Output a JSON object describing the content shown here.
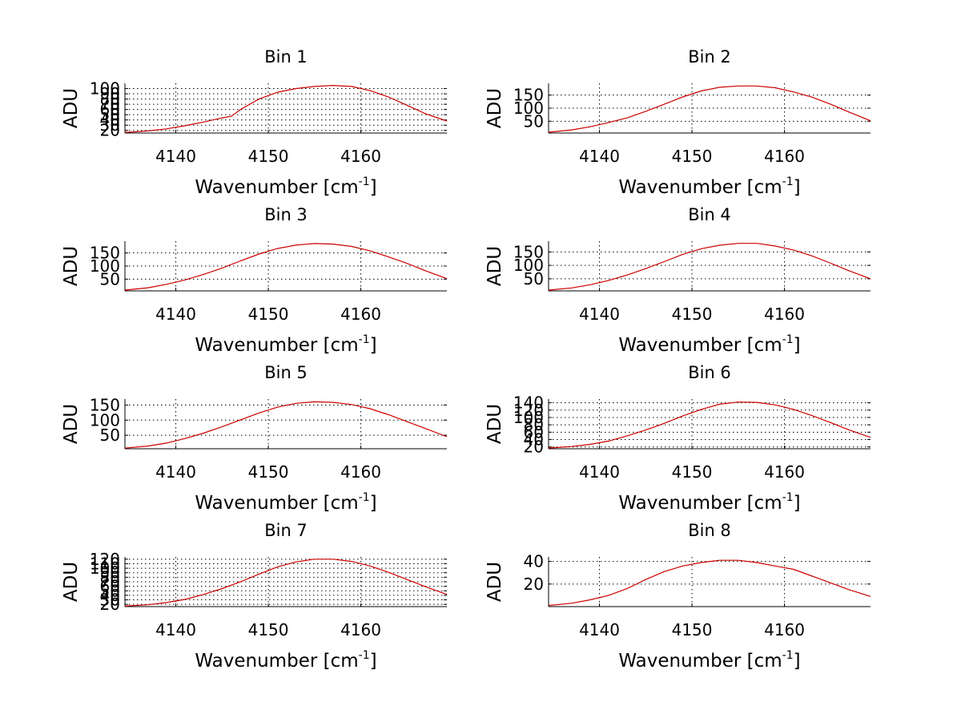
{
  "figure": {
    "background": "#ffffff",
    "line_color": "#cc0000"
  },
  "chart_data": [
    {
      "type": "line",
      "title": "Bin 1",
      "xlabel": {
        "main": "Wavenumber [cm",
        "sup": "-1",
        "close": "]"
      },
      "ylabel": "ADU",
      "xlim": [
        4134.5,
        4169.3
      ],
      "ylim": [
        15,
        110
      ],
      "xticks": [
        4140,
        4150,
        4160
      ],
      "xtick_labels": [
        "4140",
        "4150",
        "4160"
      ],
      "yticks": [
        20,
        30,
        40,
        50,
        60,
        70,
        80,
        90,
        100
      ],
      "ytick_labels": [
        "20",
        "30",
        "40",
        "50",
        "60",
        "70",
        "80",
        "90",
        "100"
      ],
      "grid": true,
      "series": [
        {
          "name": "Bin 1",
          "x": [
            4134.5,
            4137,
            4139,
            4141,
            4143,
            4145,
            4146,
            4147,
            4149,
            4151,
            4153,
            4155,
            4157,
            4159,
            4161,
            4163,
            4165,
            4167,
            4169.3
          ],
          "y": [
            16,
            19,
            23,
            29,
            36,
            44,
            47,
            60,
            80,
            93,
            100,
            104,
            106,
            104,
            96,
            84,
            68,
            52,
            38
          ]
        }
      ]
    },
    {
      "type": "line",
      "title": "Bin 2",
      "xlabel": {
        "main": "Wavenumber [cm",
        "sup": "-1",
        "close": "]"
      },
      "ylabel": "ADU",
      "xlim": [
        4134.5,
        4169.3
      ],
      "ylim": [
        5,
        195
      ],
      "xticks": [
        4140,
        4150,
        4160
      ],
      "xtick_labels": [
        "4140",
        "4150",
        "4160"
      ],
      "yticks": [
        50,
        100,
        150
      ],
      "ytick_labels": [
        "50",
        "100",
        "150"
      ],
      "grid": true,
      "series": [
        {
          "name": "Bin 2",
          "x": [
            4134.5,
            4137,
            4139,
            4141,
            4143,
            4145,
            4147,
            4149,
            4151,
            4153,
            4155,
            4157,
            4159,
            4161,
            4163,
            4165,
            4167,
            4169.3
          ],
          "y": [
            8,
            17,
            29,
            45,
            63,
            88,
            115,
            143,
            166,
            180,
            185,
            185,
            178,
            162,
            142,
            115,
            85,
            52
          ]
        }
      ]
    },
    {
      "type": "line",
      "title": "Bin 3",
      "xlabel": {
        "main": "Wavenumber [cm",
        "sup": "-1",
        "close": "]"
      },
      "ylabel": "ADU",
      "xlim": [
        4134.5,
        4169.3
      ],
      "ylim": [
        5,
        195
      ],
      "xticks": [
        4140,
        4150,
        4160
      ],
      "xtick_labels": [
        "4140",
        "4150",
        "4160"
      ],
      "yticks": [
        50,
        100,
        150
      ],
      "ytick_labels": [
        "50",
        "100",
        "150"
      ],
      "grid": true,
      "series": [
        {
          "name": "Bin 3",
          "x": [
            4134.5,
            4137,
            4139,
            4141,
            4143,
            4145,
            4147,
            4149,
            4151,
            4153,
            4155,
            4157,
            4159,
            4161,
            4163,
            4165,
            4167,
            4169.3
          ],
          "y": [
            8,
            17,
            30,
            47,
            68,
            92,
            120,
            146,
            167,
            180,
            186,
            184,
            175,
            158,
            135,
            110,
            82,
            52
          ]
        }
      ]
    },
    {
      "type": "line",
      "title": "Bin 4",
      "xlabel": {
        "main": "Wavenumber [cm",
        "sup": "-1",
        "close": "]"
      },
      "ylabel": "ADU",
      "xlim": [
        4134.5,
        4169.3
      ],
      "ylim": [
        5,
        190
      ],
      "xticks": [
        4140,
        4150,
        4160
      ],
      "xtick_labels": [
        "4140",
        "4150",
        "4160"
      ],
      "yticks": [
        50,
        100,
        150
      ],
      "ytick_labels": [
        "50",
        "100",
        "150"
      ],
      "grid": true,
      "series": [
        {
          "name": "Bin 4",
          "x": [
            4134.5,
            4137,
            4139,
            4141,
            4143,
            4145,
            4147,
            4149,
            4151,
            4153,
            4155,
            4157,
            4159,
            4161,
            4163,
            4165,
            4167,
            4169.3
          ],
          "y": [
            8,
            16,
            28,
            44,
            64,
            88,
            114,
            141,
            162,
            175,
            182,
            182,
            172,
            157,
            135,
            108,
            80,
            50
          ]
        }
      ]
    },
    {
      "type": "line",
      "title": "Bin 5",
      "xlabel": {
        "main": "Wavenumber [cm",
        "sup": "-1",
        "close": "]"
      },
      "ylabel": "ADU",
      "xlim": [
        4134.5,
        4169.3
      ],
      "ylim": [
        5,
        170
      ],
      "xticks": [
        4140,
        4150,
        4160
      ],
      "xtick_labels": [
        "4140",
        "4150",
        "4160"
      ],
      "yticks": [
        50,
        100,
        150
      ],
      "ytick_labels": [
        "50",
        "100",
        "150"
      ],
      "grid": true,
      "series": [
        {
          "name": "Bin 5",
          "x": [
            4134.5,
            4137,
            4139,
            4141,
            4143,
            4145,
            4147,
            4149,
            4151,
            4153,
            4155,
            4157,
            4159,
            4161,
            4163,
            4165,
            4167,
            4169.3
          ],
          "y": [
            7,
            14,
            24,
            39,
            57,
            78,
            101,
            124,
            143,
            156,
            161,
            159,
            152,
            138,
            118,
            95,
            72,
            45
          ]
        }
      ]
    },
    {
      "type": "line",
      "title": "Bin 6",
      "xlabel": {
        "main": "Wavenumber [cm",
        "sup": "-1",
        "close": "]"
      },
      "ylabel": "ADU",
      "xlim": [
        4134.5,
        4169.3
      ],
      "ylim": [
        15,
        150
      ],
      "xticks": [
        4140,
        4150,
        4160
      ],
      "xtick_labels": [
        "4140",
        "4150",
        "4160"
      ],
      "yticks": [
        20,
        40,
        60,
        80,
        100,
        120,
        140
      ],
      "ytick_labels": [
        "20",
        "40",
        "60",
        "80",
        "100",
        "120",
        "140"
      ],
      "grid": true,
      "series": [
        {
          "name": "Bin 6",
          "x": [
            4134.5,
            4137,
            4139,
            4141,
            4143,
            4145,
            4147,
            4149,
            4151,
            4153,
            4155,
            4157,
            4159,
            4161,
            4163,
            4165,
            4167,
            4169.3
          ],
          "y": [
            17,
            21,
            27,
            36,
            50,
            66,
            84,
            104,
            122,
            136,
            142,
            141,
            134,
            122,
            105,
            86,
            66,
            46
          ]
        }
      ]
    },
    {
      "type": "line",
      "title": "Bin 7",
      "xlabel": {
        "main": "Wavenumber [cm",
        "sup": "-1",
        "close": "]"
      },
      "ylabel": "ADU",
      "xlim": [
        4134.5,
        4169.3
      ],
      "ylim": [
        15,
        125
      ],
      "xticks": [
        4140,
        4150,
        4160
      ],
      "xtick_labels": [
        "4140",
        "4150",
        "4160"
      ],
      "yticks": [
        20,
        30,
        40,
        50,
        60,
        70,
        80,
        90,
        100,
        110,
        120
      ],
      "ytick_labels": [
        "20",
        "30",
        "40",
        "50",
        "60",
        "70",
        "80",
        "90",
        "100",
        "110",
        "120"
      ],
      "grid": true,
      "series": [
        {
          "name": "Bin 7",
          "x": [
            4134.5,
            4137,
            4139,
            4141,
            4143,
            4145,
            4147,
            4149,
            4151,
            4153,
            4155,
            4157,
            4159,
            4161,
            4163,
            4165,
            4167,
            4169.3
          ],
          "y": [
            16,
            19,
            24,
            31,
            42,
            55,
            70,
            87,
            103,
            114,
            120,
            120,
            115,
            105,
            91,
            75,
            59,
            42
          ]
        }
      ]
    },
    {
      "type": "line",
      "title": "Bin 8",
      "xlabel": {
        "main": "Wavenumber [cm",
        "sup": "-1",
        "close": "]"
      },
      "ylabel": "ADU",
      "xlim": [
        4134.5,
        4169.3
      ],
      "ylim": [
        0,
        44
      ],
      "xticks": [
        4140,
        4150,
        4160
      ],
      "xtick_labels": [
        "4140",
        "4150",
        "4160"
      ],
      "yticks": [
        20,
        40
      ],
      "ytick_labels": [
        "20",
        "40"
      ],
      "grid": true,
      "series": [
        {
          "name": "Bin 8",
          "x": [
            4134.5,
            4137,
            4139,
            4141,
            4143,
            4145,
            4147,
            4149,
            4151,
            4153,
            4155,
            4157,
            4159,
            4161,
            4163,
            4165,
            4167,
            4169.3
          ],
          "y": [
            1,
            3,
            6,
            10,
            16,
            24,
            31,
            36,
            39,
            41,
            41,
            39,
            36,
            33,
            27,
            21,
            15,
            9
          ]
        }
      ]
    }
  ]
}
